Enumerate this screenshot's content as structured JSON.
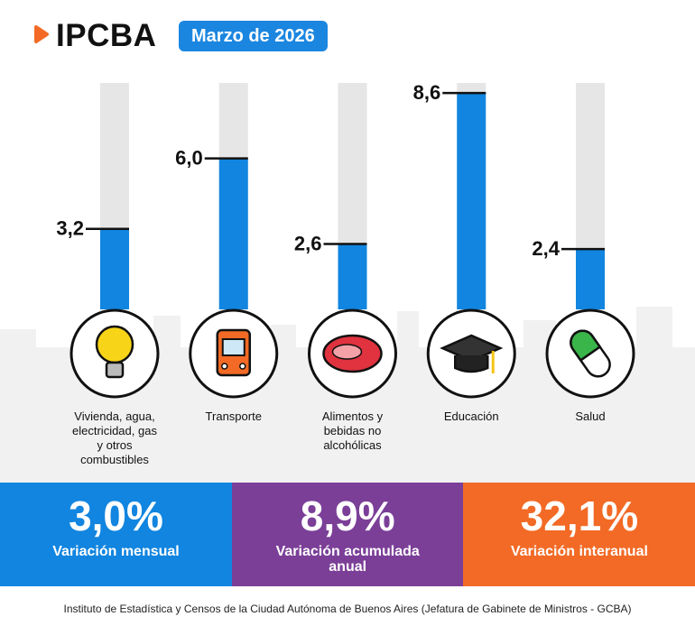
{
  "header": {
    "logo": "IPCBA",
    "date": "Marzo de 2026"
  },
  "chart_data": {
    "type": "bar",
    "categories": [
      "Vivienda, agua, electricidad, gas y otros combustibles",
      "Transporte",
      "Alimentos y bebidas no alcohólicas",
      "Educación",
      "Salud"
    ],
    "values": [
      3.2,
      6.0,
      2.6,
      8.6,
      2.4
    ],
    "value_labels": [
      "3,2",
      "6,0",
      "2,6",
      "8,6",
      "2,4"
    ],
    "color": "#1185e0",
    "ylim": [
      0,
      9
    ]
  },
  "summary": [
    {
      "value": "3,0%",
      "label": "Variación mensual",
      "color": "#1185e0"
    },
    {
      "value": "8,9%",
      "label": "Variación acumulada anual",
      "color": "#7b3f98"
    },
    {
      "value": "32,1%",
      "label": "Variación interanual",
      "color": "#f26a25"
    }
  ],
  "footer": "Instituto de Estadística y Censos de la Ciudad Autónoma de Buenos Aires (Jefatura de Gabinete de Ministros - GCBA)"
}
